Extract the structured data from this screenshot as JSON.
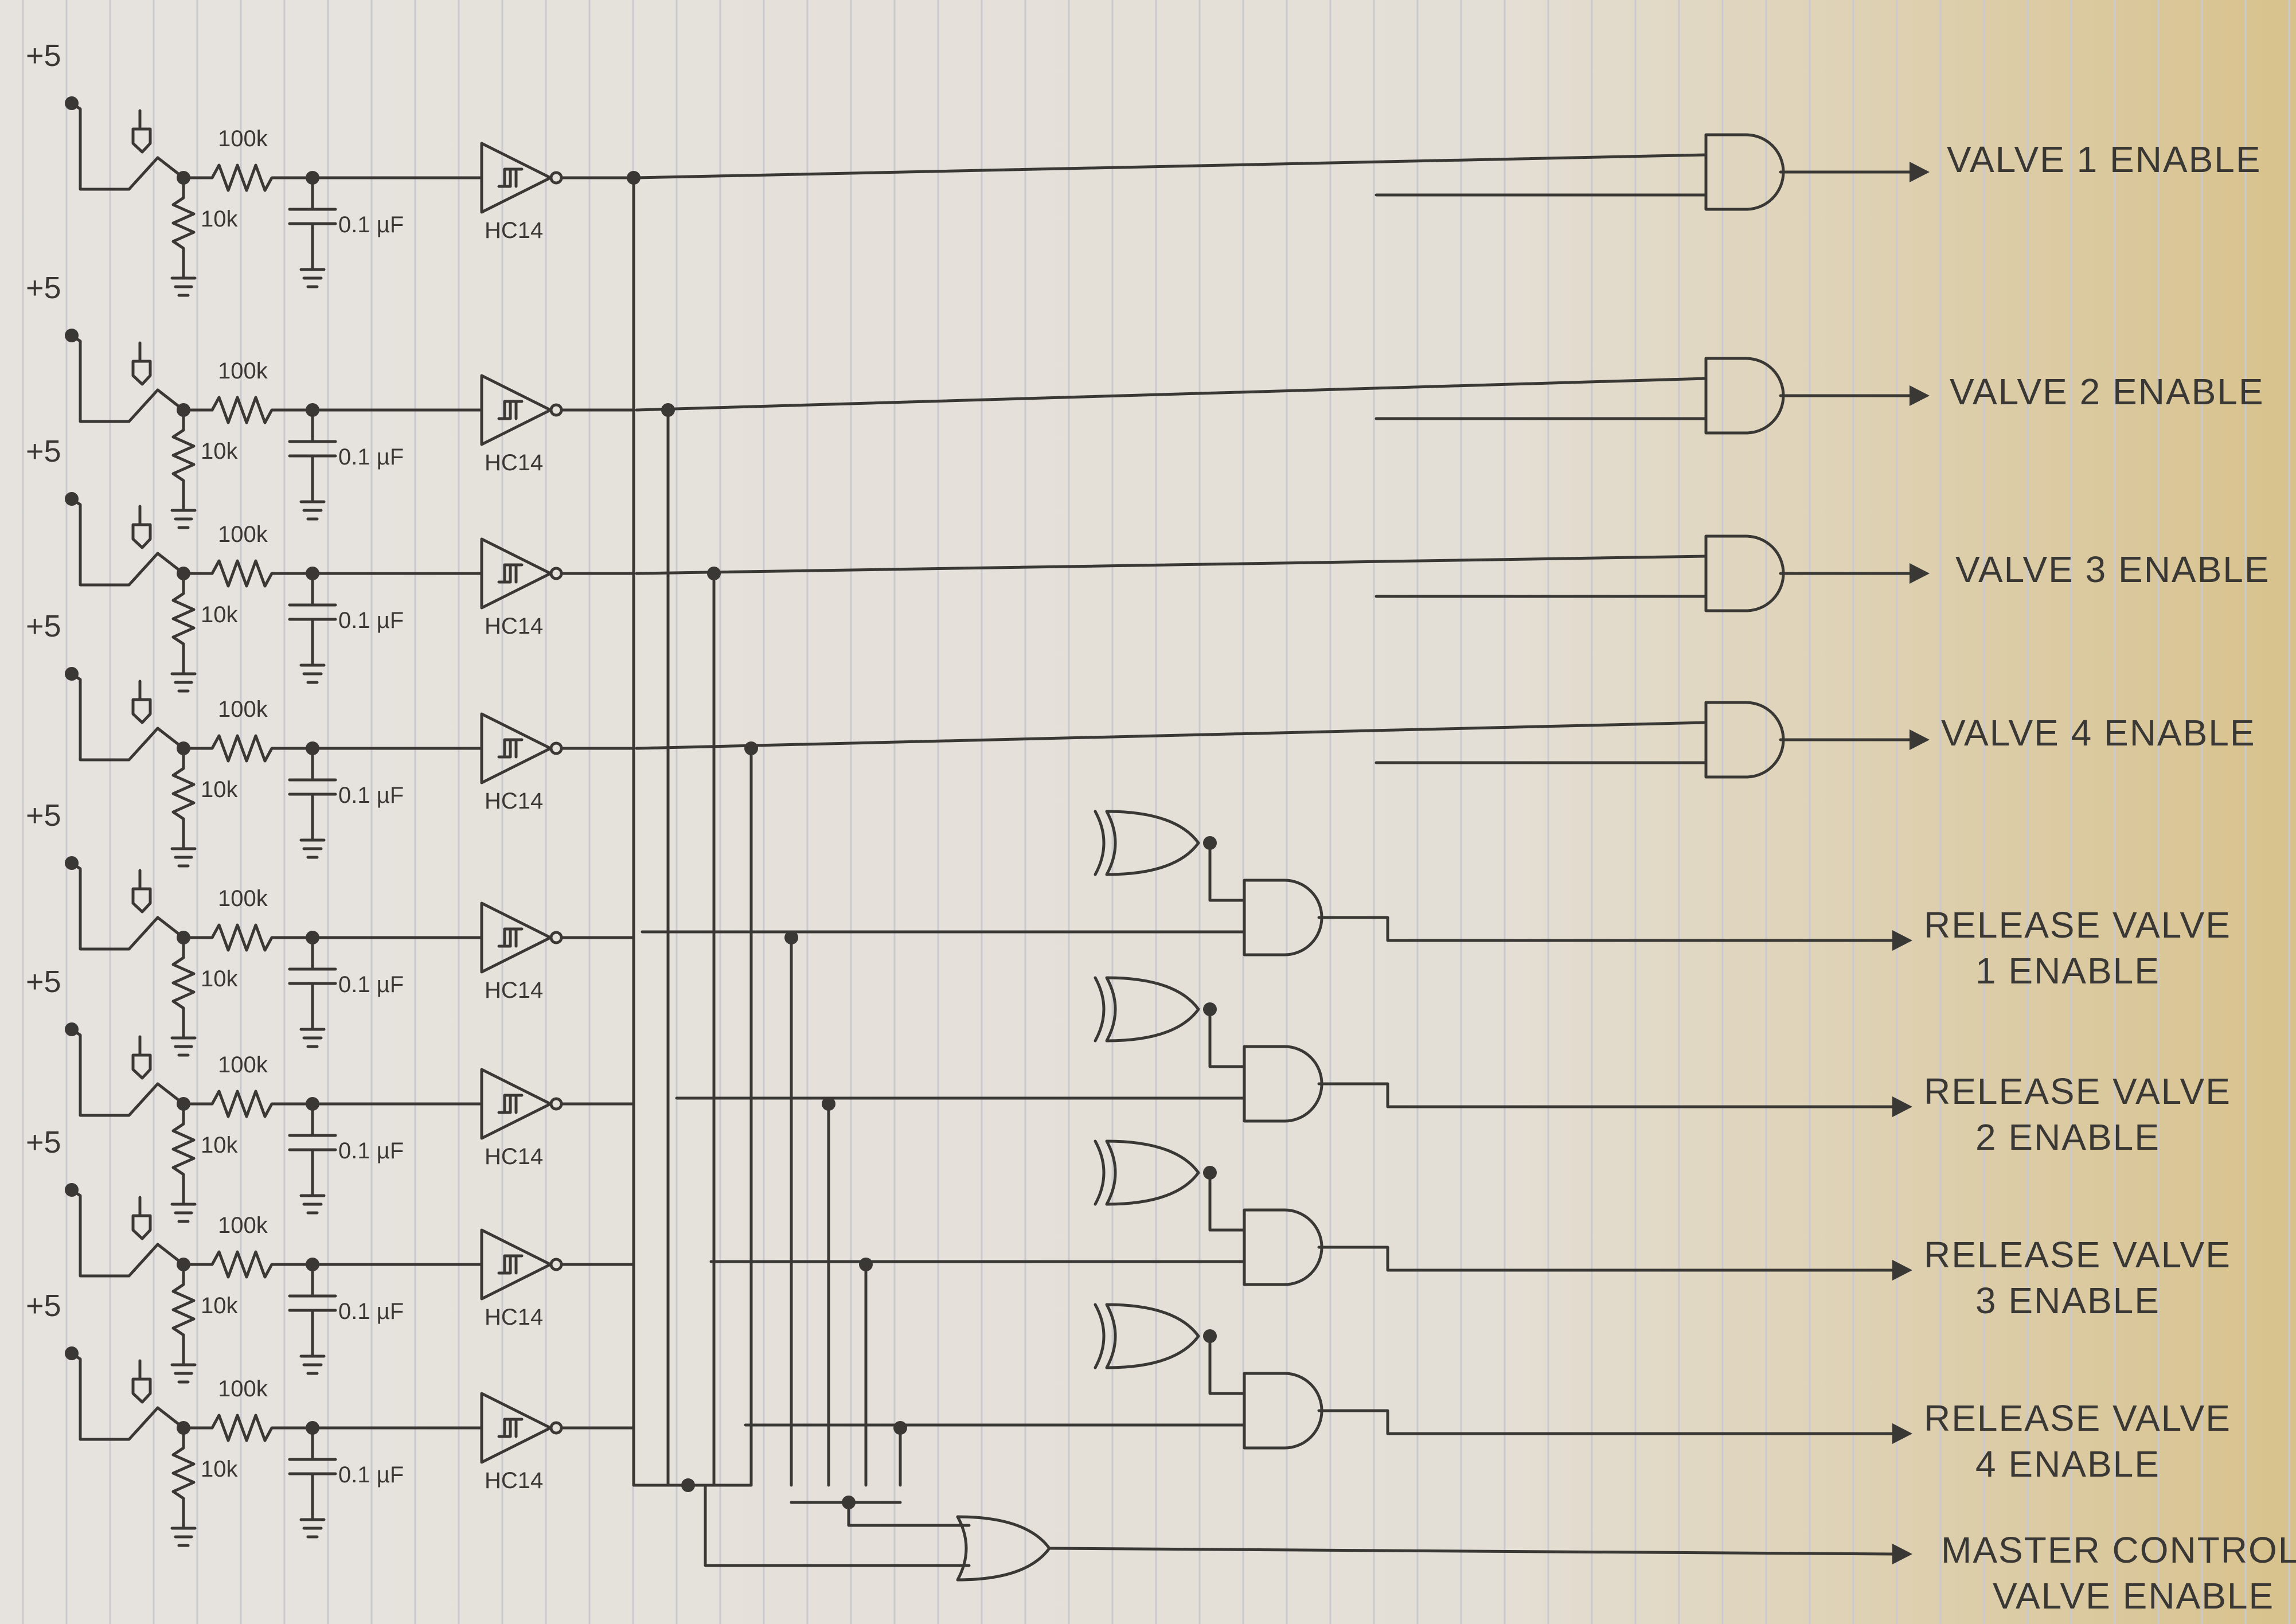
{
  "supply_label": "+5",
  "resistor_top": "100k",
  "resistor_bottom": "10k",
  "capacitor": "0.1 µF",
  "buffer": "HC14",
  "channel_count": 8,
  "outputs": [
    [
      "VALVE 1 ENABLE"
    ],
    [
      "VALVE 2 ENABLE"
    ],
    [
      "VALVE 3 ENABLE"
    ],
    [
      "VALVE 4 ENABLE"
    ],
    [
      "RELEASE VALVE",
      "1 ENABLE"
    ],
    [
      "RELEASE VALVE",
      "2 ENABLE"
    ],
    [
      "RELEASE VALVE",
      "3 ENABLE"
    ],
    [
      "RELEASE VALVE",
      "4 ENABLE"
    ],
    [
      "MASTER CONTROL",
      "VALVE ENABLE"
    ]
  ],
  "colors": {
    "paper": "#e4e0da",
    "ink": "#3a3835",
    "rule": "#c9c9cf"
  }
}
